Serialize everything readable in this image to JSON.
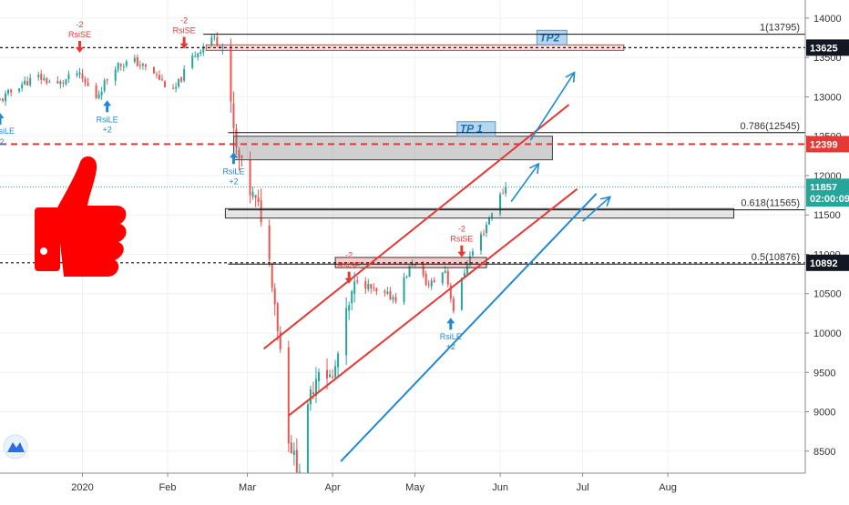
{
  "chart_data": {
    "type": "candlestick",
    "instrument_note": "",
    "y_axis": {
      "ticks": [
        8500,
        9000,
        9500,
        10000,
        10500,
        11000,
        11500,
        12000,
        12500,
        13000,
        13500,
        14000
      ],
      "tick_labels": [
        "8500",
        "9000",
        "9500",
        "10000",
        "10500",
        "11000",
        "11500",
        "12000",
        "12500",
        "13000",
        "13500",
        "14000"
      ],
      "range": [
        8220,
        14230
      ]
    },
    "x_axis": {
      "labels": [
        "2020",
        "Feb",
        "Mar",
        "Apr",
        "May",
        "Jun",
        "Jul",
        "Aug"
      ],
      "range": [
        "2019-12-02",
        "2020-09-20"
      ],
      "label_dates": [
        "2020-01-01",
        "2020-02-01",
        "2020-03-01",
        "2020-04-01",
        "2020-05-01",
        "2020-06-01",
        "2020-07-01",
        "2020-08-01"
      ]
    },
    "price_tags": [
      {
        "label": "13625",
        "value": 13625,
        "style": "dark"
      },
      {
        "label": "12399",
        "value": 12399,
        "style": "red"
      },
      {
        "label": "11857",
        "value": 11857,
        "style": "teal"
      },
      {
        "label": "02:00:09",
        "value": 11710,
        "style": "teal"
      },
      {
        "label": "10892",
        "value": 10892,
        "style": "dark"
      }
    ],
    "fib_levels": [
      {
        "label": "1(13795)",
        "value": 13795
      },
      {
        "label": "0.786(12545)",
        "value": 12545
      },
      {
        "label": "0.618(11565)",
        "value": 11565
      },
      {
        "label": "0.5(10876)",
        "value": 10876
      }
    ],
    "zones": [
      {
        "label": "TP2",
        "from": 13590,
        "to": 13660
      },
      {
        "label": "TP 1",
        "from": 12200,
        "to": 12500
      },
      {
        "label": "",
        "from": 11460,
        "to": 11580
      },
      {
        "label": "",
        "from": 10830,
        "to": 10960
      }
    ],
    "signals": [
      {
        "type": "RsiSE",
        "value": "-2",
        "date": "2019-12-31"
      },
      {
        "type": "RsiLE",
        "value": "+2",
        "date": "2020-01-10"
      },
      {
        "type": "RsiSE",
        "value": "-2",
        "date": "2020-02-07"
      },
      {
        "type": "RsiLE",
        "value": "+2",
        "date": "2020-02-25"
      },
      {
        "type": "RsiSE",
        "value": "-2",
        "date": "2020-04-07"
      },
      {
        "type": "RsiSE",
        "value": "-2",
        "date": "2020-05-18"
      },
      {
        "type": "RsiLE",
        "value": "+2",
        "date": "2020-05-14"
      }
    ],
    "signal_partial_labels": [
      "RsiLE",
      "2"
    ],
    "price_path": [
      [
        "2019-12-02",
        12950
      ],
      [
        "2019-12-09",
        13150
      ],
      [
        "2019-12-16",
        13250
      ],
      [
        "2019-12-23",
        13150
      ],
      [
        "2019-12-30",
        13300
      ],
      [
        "2020-01-06",
        13000
      ],
      [
        "2020-01-13",
        13400
      ],
      [
        "2020-01-20",
        13450
      ],
      [
        "2020-01-27",
        13300
      ],
      [
        "2020-02-03",
        13050
      ],
      [
        "2020-02-10",
        13500
      ],
      [
        "2020-02-17",
        13760
      ],
      [
        "2020-02-21",
        13650
      ],
      [
        "2020-02-26",
        12300
      ],
      [
        "2020-03-02",
        11800
      ],
      [
        "2020-03-06",
        11500
      ],
      [
        "2020-03-10",
        10700
      ],
      [
        "2020-03-13",
        9800
      ],
      [
        "2020-03-16",
        8700
      ],
      [
        "2020-03-18",
        8400
      ],
      [
        "2020-03-20",
        8300
      ],
      [
        "2020-03-24",
        9200
      ],
      [
        "2020-03-27",
        9600
      ],
      [
        "2020-04-01",
        9400
      ],
      [
        "2020-04-06",
        10200
      ],
      [
        "2020-04-10",
        10700
      ],
      [
        "2020-04-17",
        10500
      ],
      [
        "2020-04-24",
        10450
      ],
      [
        "2020-04-30",
        10900
      ],
      [
        "2020-05-06",
        10600
      ],
      [
        "2020-05-12",
        10800
      ],
      [
        "2020-05-15",
        10300
      ],
      [
        "2020-05-20",
        10900
      ],
      [
        "2020-05-26",
        11300
      ],
      [
        "2020-05-29",
        11550
      ],
      [
        "2020-06-03",
        11857
      ]
    ]
  }
}
